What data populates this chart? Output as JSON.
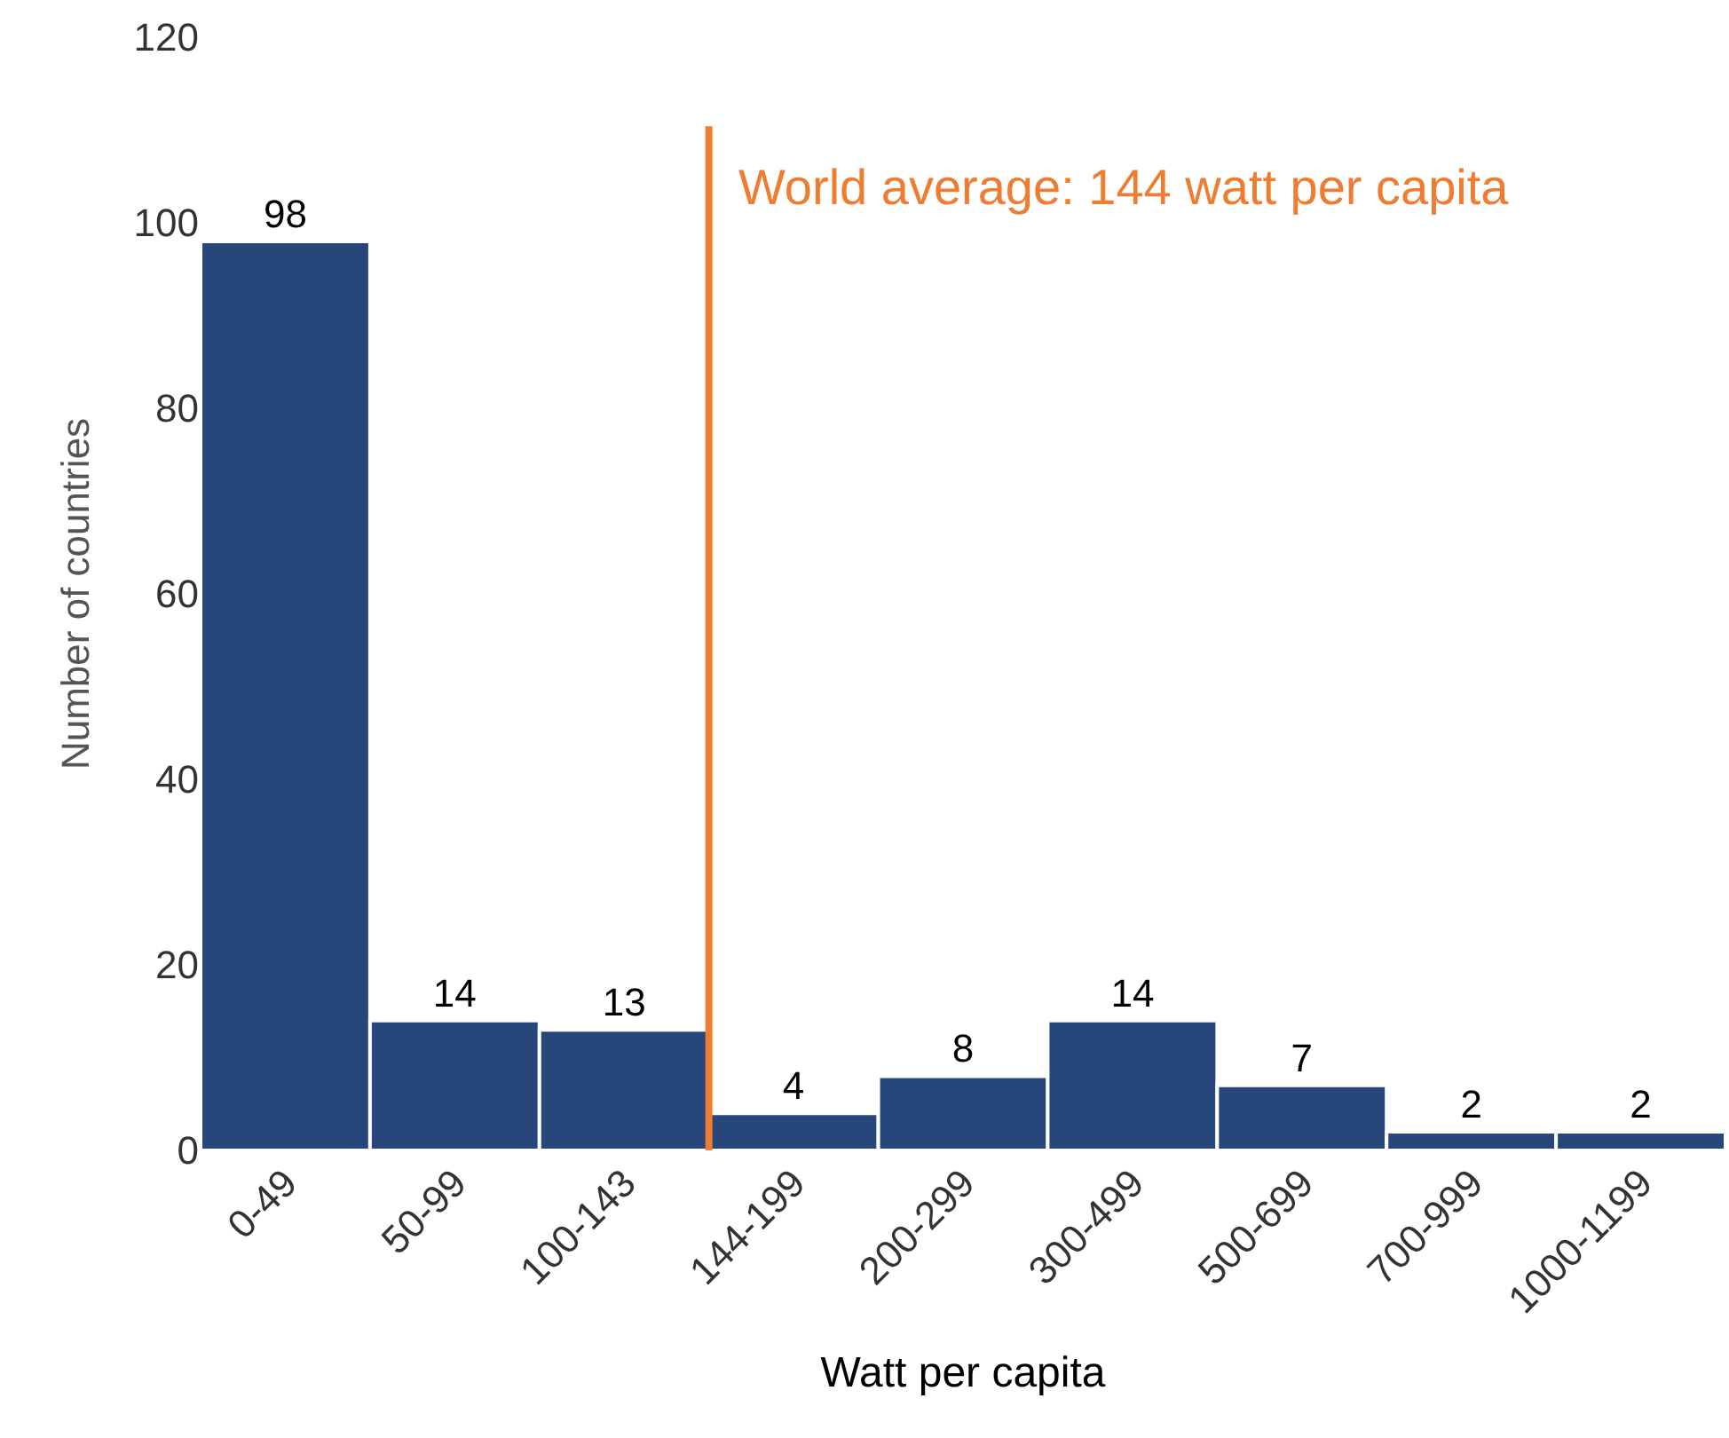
{
  "chart_data": {
    "type": "bar",
    "xlabel": "Watt per capita",
    "ylabel": "Number of countries",
    "categories": [
      "0-49",
      "50-99",
      "100-143",
      "144-199",
      "200-299",
      "300-499",
      "500-699",
      "700-999",
      "1000-1199"
    ],
    "values": [
      98,
      14,
      13,
      4,
      8,
      14,
      7,
      2,
      2
    ],
    "color": "#27467a",
    "data_labels": true,
    "ylim": [
      0,
      120
    ],
    "yticks": [
      0,
      20,
      40,
      60,
      80,
      100,
      120
    ],
    "ref_lines": [
      {
        "axis": "x",
        "value": "144-199",
        "label": "World average: 144 watt per capita",
        "color": "#ee7d31"
      }
    ]
  }
}
